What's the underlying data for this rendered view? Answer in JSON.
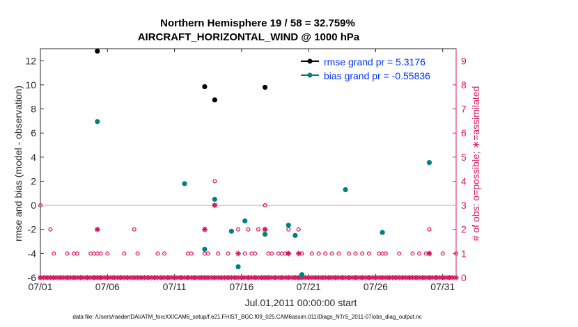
{
  "chart_data": {
    "type": "scatter",
    "title": "Northern Hemisphere 19 / 58 = 32.759%",
    "subtitle": "AIRCRAFT_HORIZONTAL_WIND @ 1000 hPa",
    "xlabel": "Jul.01,2011 00:00:00 start",
    "ylabel": "rmse and bias (model - observation)",
    "y2label": "# of obs: o=possible; ∗=assimilated",
    "xlim": [
      0,
      31
    ],
    "ylim": [
      -6,
      13
    ],
    "y2lim": [
      0,
      9.5
    ],
    "xticks": [
      0,
      5,
      10,
      15,
      20,
      25,
      30
    ],
    "xticklabels": [
      "07/01",
      "07/06",
      "07/11",
      "07/16",
      "07/21",
      "07/26",
      "07/31"
    ],
    "yticks": [
      -6,
      -4,
      -2,
      0,
      2,
      4,
      6,
      8,
      10,
      12
    ],
    "yticklabels": [
      "-6",
      "-4",
      "-2",
      "0",
      "2",
      "4",
      "6",
      "8",
      "10",
      "12"
    ],
    "y2ticks": [
      0,
      1,
      2,
      3,
      4,
      5,
      6,
      7,
      8,
      9
    ],
    "y2ticklabels": [
      "0",
      "1",
      "2",
      "3",
      "4",
      "5",
      "6",
      "7",
      "8",
      "9"
    ],
    "zero_line": 0,
    "legend": {
      "position": "top-right",
      "entries": [
        "rmse grand pr = 5.3176",
        "bias grand pr = -0.55836"
      ]
    },
    "series": [
      {
        "name": "rmse grand pr = 5.3176",
        "color": "#000000",
        "x": [
          4.25,
          12.25,
          13.0,
          16.75
        ],
        "y": [
          12.8,
          9.85,
          8.75,
          9.8
        ]
      },
      {
        "name": "bias grand pr = -0.55836",
        "color": "#008080",
        "x": [
          4.25,
          10.75,
          12.25,
          13.0,
          14.25,
          14.75,
          15.25,
          16.75,
          18.5,
          19.0,
          19.5,
          22.75,
          25.5,
          29.0
        ],
        "y": [
          6.95,
          1.8,
          -3.65,
          0.5,
          -2.15,
          -5.1,
          -1.3,
          -2.4,
          -1.65,
          -2.5,
          -5.75,
          1.3,
          -2.25,
          3.55
        ]
      },
      {
        "name": "possible observations",
        "color": "#d81b60",
        "axis": "right",
        "marker": "o",
        "x": [
          0,
          0.5,
          1,
          1.5,
          2,
          2.5,
          3,
          3.5,
          4,
          4.25,
          4.5,
          5,
          5.5,
          6,
          6.5,
          7,
          7.5,
          8,
          8.5,
          9,
          9.5,
          10,
          10.5,
          11,
          11.5,
          12,
          12.25,
          12.5,
          13,
          13.5,
          14,
          14.5,
          15,
          15.5,
          16,
          16.5,
          16.75,
          17,
          17.5,
          18,
          18.5,
          19,
          19.25,
          19.5,
          20,
          20.5,
          21,
          21.5,
          22,
          22.5,
          23,
          23.5,
          24,
          24.5,
          25,
          25.5,
          26,
          26.5,
          27,
          27.5,
          28,
          28.5,
          29,
          29.5,
          30,
          30.5
        ],
        "y": [
          0,
          0,
          0,
          0,
          0,
          0,
          0,
          0,
          0,
          0,
          0,
          0,
          0,
          0,
          0,
          0,
          0,
          0,
          0,
          0,
          0,
          0,
          0,
          0,
          0,
          0,
          0,
          0,
          0,
          0,
          0,
          0,
          0,
          0,
          0,
          0,
          0,
          0,
          0,
          0,
          0,
          0,
          0,
          0,
          0,
          0,
          0,
          0,
          0,
          0,
          0,
          0,
          0,
          0,
          0,
          0,
          0,
          0,
          0,
          0,
          0,
          0,
          0,
          0,
          0,
          0
        ],
        "extra_points": {
          "x": [
            0,
            0.75,
            1.0,
            2.0,
            2.5,
            2.75,
            3.75,
            4.0,
            4.25,
            4.25,
            4.5,
            5.0,
            6.25,
            7.0,
            7.25,
            8.75,
            9.25,
            11.0,
            11.25,
            12.25,
            12.25,
            12.5,
            13.0,
            13.0,
            13.25,
            14.0,
            14.75,
            15.25,
            15.5,
            15.75,
            16.0,
            16.25,
            16.75,
            16.75,
            17.0,
            17.25,
            17.75,
            18.0,
            18.25,
            18.5,
            18.5,
            19.25,
            19.5,
            20.25,
            20.75,
            21.25,
            21.75,
            22.25,
            23.0,
            23.5,
            24.0,
            24.5,
            25.25,
            25.5,
            25.75,
            26.75,
            27.75,
            28.25,
            28.75,
            29.0,
            29.0,
            30.0,
            31.0
          ],
          "y": [
            3,
            2,
            1,
            1,
            1,
            1,
            1,
            1,
            1,
            2,
            1,
            1,
            1,
            2,
            1,
            1,
            1,
            1,
            1,
            1,
            2,
            1,
            4,
            3,
            1,
            1,
            2,
            1,
            2,
            1,
            1,
            2,
            3,
            2,
            1,
            1,
            1,
            1,
            1,
            2,
            1,
            2,
            1,
            1,
            1,
            1,
            1,
            1,
            1,
            1,
            1,
            1,
            1,
            1,
            1,
            1,
            1,
            1,
            1,
            2,
            1,
            1,
            1
          ]
        }
      },
      {
        "name": "assimilated observations",
        "color": "#d81b60",
        "axis": "right",
        "marker": "*",
        "x": [
          4.25,
          12.25,
          13.0,
          14.75,
          16.75,
          18.5,
          19.25,
          29.0
        ],
        "y": [
          2,
          2,
          3,
          1,
          2,
          1,
          1,
          1
        ]
      }
    ],
    "footnote": "data file: /Users/raeder/DAI/ATM_forcXX/CAM6_setup/f.e21.FHIST_BGC.f09_025.CAM6assim.011/Diags_NTrS_2011-07/obs_diag_output.nc"
  }
}
